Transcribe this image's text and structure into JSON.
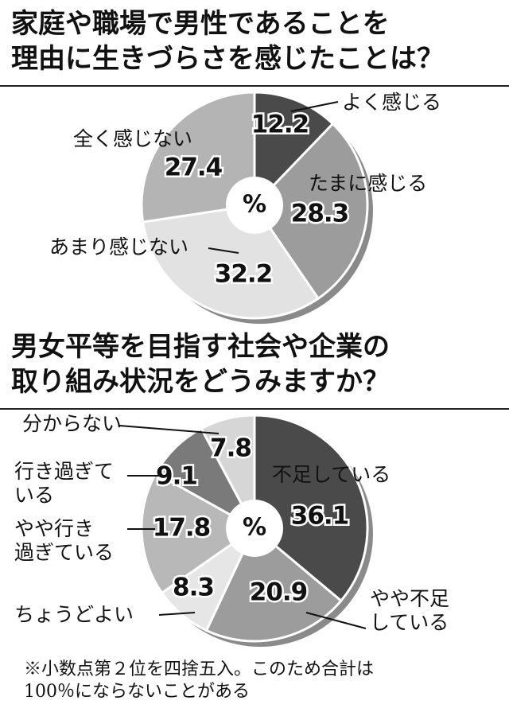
{
  "chart_data": [
    {
      "type": "donut",
      "title": "家庭や職場で男性であることを\n理由に生きづらさを感じたことは？",
      "center_label": "%",
      "categories": [
        "よく感じる",
        "たまに感じる",
        "あまり感じない",
        "全く感じない"
      ],
      "values": [
        12.2,
        28.3,
        32.2,
        27.4
      ],
      "colors": [
        "#4a4a4a",
        "#9c9c9c",
        "#e2e2e2",
        "#b4b4b4"
      ]
    },
    {
      "type": "donut",
      "title": "男女平等を目指す社会や企業の\n取り組み状況をどうみますか？",
      "center_label": "%",
      "categories": [
        "不足している",
        "やや不足\nしている",
        "ちょうどよい",
        "やや行き\n過ぎている",
        "行き過ぎて\nいる",
        "分からない"
      ],
      "values": [
        36.1,
        20.9,
        8.3,
        17.8,
        9.1,
        7.8
      ],
      "colors": [
        "#4a4a4a",
        "#9c9c9c",
        "#e6e6e6",
        "#b8b8b8",
        "#7a7a7a",
        "#d6d6d6"
      ],
      "note": "※小数点第２位を四捨五入。このため合計は\n100％にならないことがある"
    }
  ]
}
